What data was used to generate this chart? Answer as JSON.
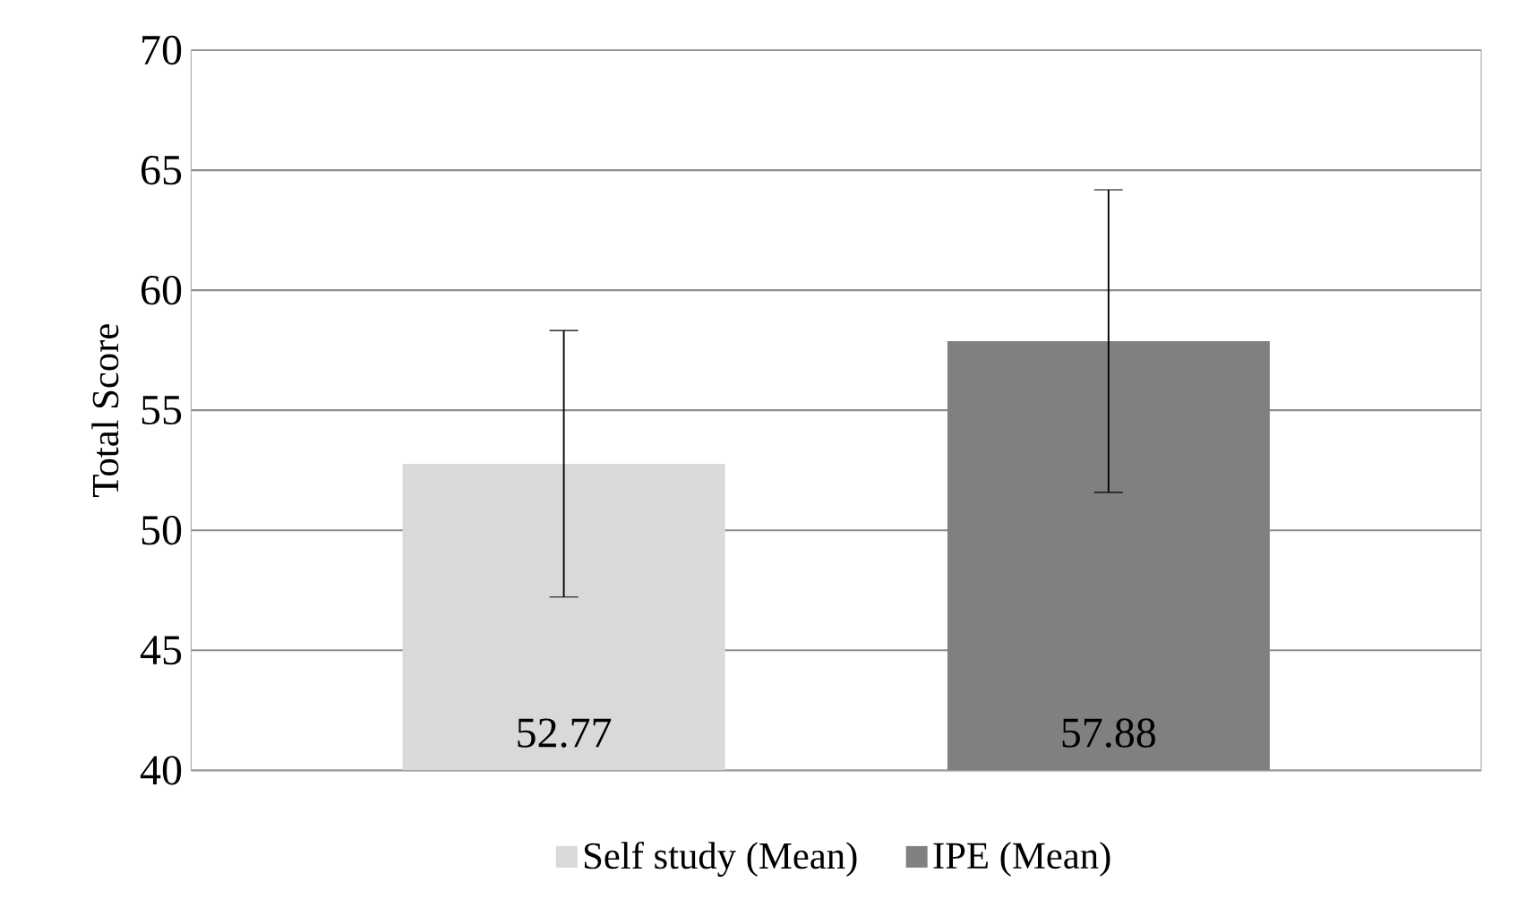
{
  "chart_data": {
    "type": "bar",
    "ylabel": "Total Score",
    "categories": [
      null
    ],
    "series": [
      {
        "name": "Self study (Mean)",
        "color": "#d9d9d9",
        "values": [
          52.77
        ],
        "errors": [
          5.55
        ]
      },
      {
        "name": "IPE (Mean)",
        "color": "#808080",
        "values": [
          57.88
        ],
        "errors": [
          6.3
        ]
      }
    ],
    "ylim": [
      40,
      70
    ],
    "yticks": [
      40,
      45,
      50,
      55,
      60,
      65,
      70
    ],
    "grid": "y",
    "legend": "bottom",
    "data_labels": true,
    "tick_labels": "y"
  }
}
